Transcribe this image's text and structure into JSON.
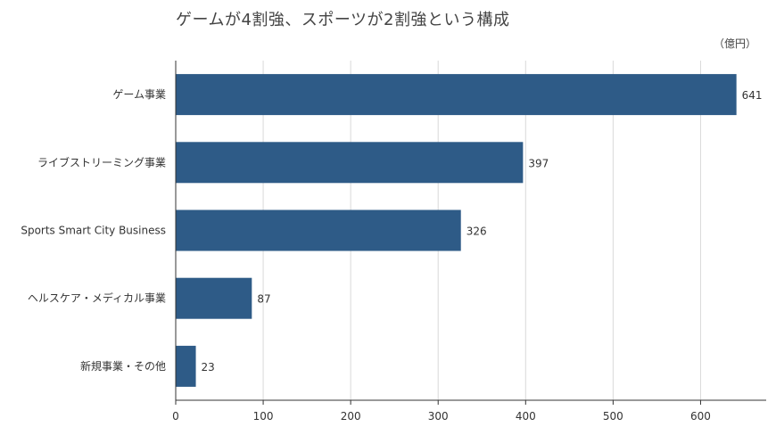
{
  "chart_data": {
    "type": "bar",
    "orientation": "horizontal",
    "title": "ゲームが4割強、スポーツが2割強という構成",
    "unit": "（億円）",
    "categories": [
      "ゲーム事業",
      "ライブストリーミング事業",
      "Sports Smart City Business",
      "ヘルスケア・メディカル事業",
      "新規事業・その他"
    ],
    "values": [
      641,
      397,
      326,
      87,
      23
    ],
    "xlim": [
      0,
      675
    ],
    "xticks": [
      0,
      100,
      200,
      300,
      400,
      500,
      600
    ],
    "grid": true,
    "bar_color": "#2e5b87"
  }
}
